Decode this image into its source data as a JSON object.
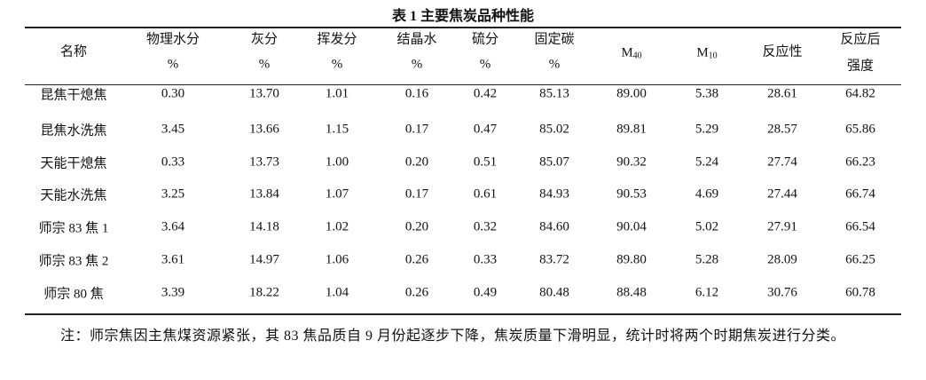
{
  "title": "表 1  主要焦炭品种性能",
  "table": {
    "headers": [
      {
        "lines": [
          "名称"
        ]
      },
      {
        "lines": [
          "物理水分",
          "%"
        ]
      },
      {
        "lines": [
          "灰分",
          "%"
        ]
      },
      {
        "lines": [
          "挥发分",
          "%"
        ]
      },
      {
        "lines": [
          "结晶水",
          "%"
        ]
      },
      {
        "lines": [
          "硫分",
          "%"
        ]
      },
      {
        "lines": [
          "固定碳",
          "%"
        ]
      },
      {
        "main": "M",
        "sub": "40"
      },
      {
        "main": "M",
        "sub": "10"
      },
      {
        "lines": [
          "反应性"
        ]
      },
      {
        "lines": [
          "反应后",
          "强度"
        ]
      }
    ],
    "rows": [
      [
        "昆焦干熄焦",
        "0.30",
        "13.70",
        "1.01",
        "0.16",
        "0.42",
        "85.13",
        "89.00",
        "5.38",
        "28.61",
        "64.82"
      ],
      [
        "昆焦水洗焦",
        "3.45",
        "13.66",
        "1.15",
        "0.17",
        "0.47",
        "85.02",
        "89.81",
        "5.29",
        "28.57",
        "65.86"
      ],
      [
        "天能干熄焦",
        "0.33",
        "13.73",
        "1.00",
        "0.20",
        "0.51",
        "85.07",
        "90.32",
        "5.24",
        "27.74",
        "66.23"
      ],
      [
        "天能水洗焦",
        "3.25",
        "13.84",
        "1.07",
        "0.17",
        "0.61",
        "84.93",
        "90.53",
        "4.69",
        "27.44",
        "66.74"
      ],
      [
        "师宗 83 焦 1",
        "3.64",
        "14.18",
        "1.02",
        "0.20",
        "0.32",
        "84.60",
        "90.04",
        "5.02",
        "27.91",
        "66.54"
      ],
      [
        "师宗 83 焦 2",
        "3.61",
        "14.97",
        "1.06",
        "0.26",
        "0.33",
        "83.72",
        "89.80",
        "5.28",
        "28.09",
        "66.25"
      ],
      [
        "师宗 80 焦",
        "3.39",
        "18.22",
        "1.04",
        "0.26",
        "0.49",
        "80.48",
        "88.48",
        "6.12",
        "30.76",
        "60.78"
      ]
    ]
  },
  "note": "注：师宗焦因主焦煤资源紧张，其 83 焦品质自 9 月份起逐步下降，焦炭质量下滑明显，统计时将两个时期焦炭进行分类。"
}
